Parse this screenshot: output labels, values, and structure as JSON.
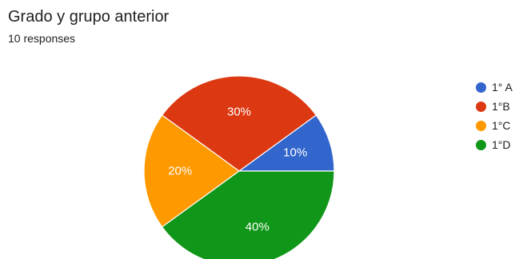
{
  "header": {
    "title": "Grado y grupo anterior",
    "subtitle": "10 responses"
  },
  "chart_data": {
    "type": "pie",
    "title": "Grado y grupo anterior",
    "start": "3 o'clock",
    "direction": "counterclockwise",
    "legend_position": "right",
    "slices": [
      {
        "name": "1° A",
        "value": 10,
        "label": "10%",
        "color": "#3366cc"
      },
      {
        "name": "1°B",
        "value": 30,
        "label": "30%",
        "color": "#dc3912"
      },
      {
        "name": "1°C",
        "value": 20,
        "label": "20%",
        "color": "#ff9900"
      },
      {
        "name": "1°D",
        "value": 40,
        "label": "40%",
        "color": "#109618"
      }
    ]
  }
}
